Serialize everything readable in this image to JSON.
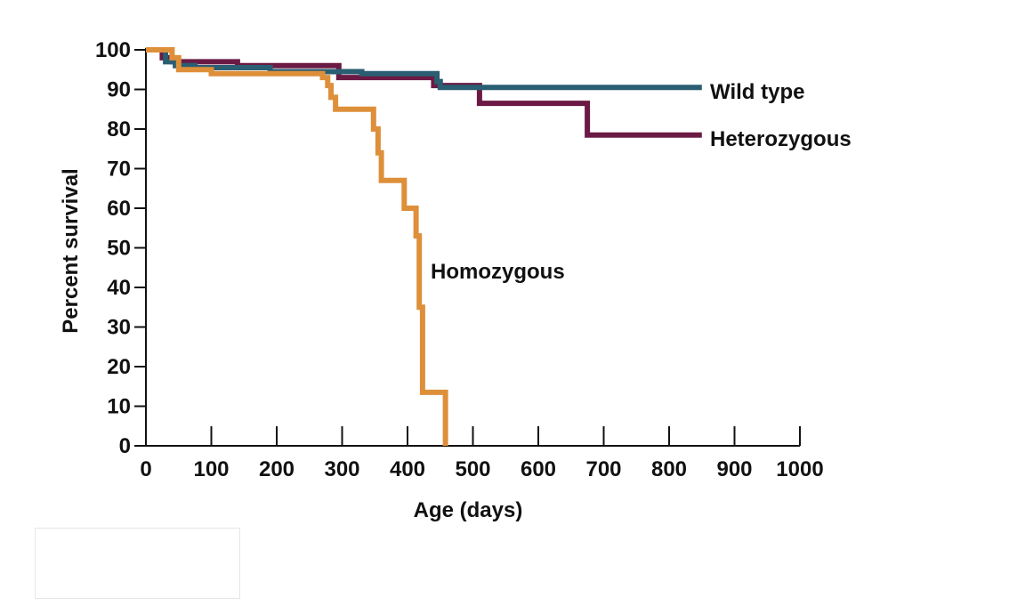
{
  "chart_data": {
    "type": "line",
    "step": true,
    "title": "",
    "xlabel": "Age (days)",
    "ylabel": "Percent survival",
    "xlim": [
      0,
      1000
    ],
    "ylim": [
      0,
      100
    ],
    "x_ticks": [
      0,
      100,
      200,
      300,
      400,
      500,
      600,
      700,
      800,
      900,
      1000
    ],
    "y_ticks": [
      0,
      10,
      20,
      30,
      40,
      50,
      60,
      70,
      80,
      90,
      100
    ],
    "grid": false,
    "legend": "inline-labels",
    "series": [
      {
        "name": "Heterozygous",
        "label": "Heterozygous",
        "color": "#6b1a45",
        "points": [
          [
            0,
            100
          ],
          [
            25,
            100
          ],
          [
            25,
            98
          ],
          [
            40,
            98
          ],
          [
            40,
            97
          ],
          [
            140,
            97
          ],
          [
            140,
            96
          ],
          [
            295,
            96
          ],
          [
            295,
            93
          ],
          [
            440,
            93
          ],
          [
            440,
            91
          ],
          [
            510,
            91
          ],
          [
            510,
            86.5
          ],
          [
            675,
            86.5
          ],
          [
            675,
            78.5
          ],
          [
            850,
            78.5
          ]
        ]
      },
      {
        "name": "Wild type",
        "label": "Wild type",
        "color": "#2a5e72",
        "points": [
          [
            0,
            100
          ],
          [
            30,
            100
          ],
          [
            30,
            97
          ],
          [
            45,
            97
          ],
          [
            45,
            96
          ],
          [
            75,
            96
          ],
          [
            75,
            95.5
          ],
          [
            190,
            95.5
          ],
          [
            190,
            94.5
          ],
          [
            330,
            94.5
          ],
          [
            330,
            94
          ],
          [
            445,
            94
          ],
          [
            445,
            92
          ],
          [
            450,
            92
          ],
          [
            450,
            90.5
          ],
          [
            850,
            90.5
          ]
        ]
      },
      {
        "name": "Homozygous",
        "label": "Homozygous",
        "color": "#de8f3a",
        "points": [
          [
            0,
            100
          ],
          [
            40,
            100
          ],
          [
            40,
            98
          ],
          [
            50,
            98
          ],
          [
            50,
            95
          ],
          [
            100,
            95
          ],
          [
            100,
            94
          ],
          [
            270,
            94
          ],
          [
            270,
            93
          ],
          [
            278,
            93
          ],
          [
            278,
            91
          ],
          [
            283,
            91
          ],
          [
            283,
            88
          ],
          [
            290,
            88
          ],
          [
            290,
            85
          ],
          [
            348,
            85
          ],
          [
            348,
            80
          ],
          [
            355,
            80
          ],
          [
            355,
            74
          ],
          [
            360,
            74
          ],
          [
            360,
            67
          ],
          [
            395,
            67
          ],
          [
            395,
            60
          ],
          [
            413,
            60
          ],
          [
            413,
            53
          ],
          [
            418,
            53
          ],
          [
            418,
            35
          ],
          [
            423,
            35
          ],
          [
            423,
            13.5
          ],
          [
            458,
            13.5
          ],
          [
            458,
            0
          ]
        ]
      }
    ]
  }
}
